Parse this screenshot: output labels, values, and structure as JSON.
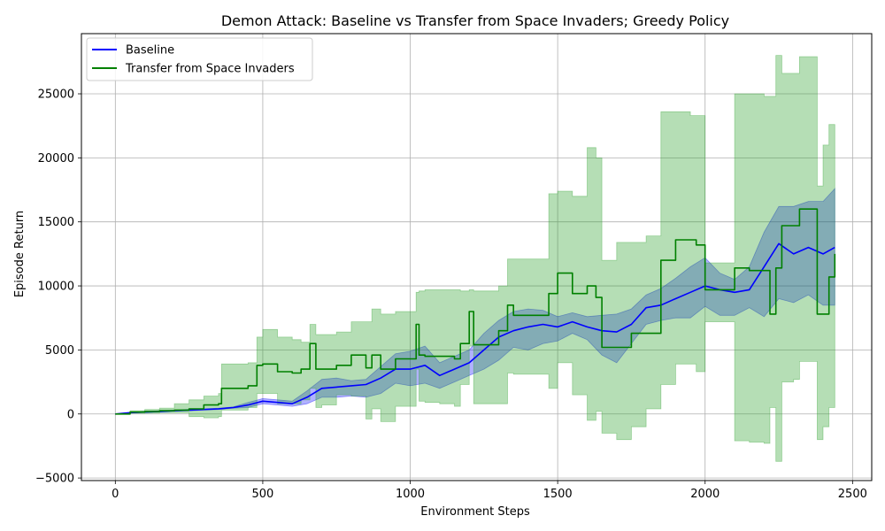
{
  "chart_data": {
    "type": "line",
    "title": "Demon Attack: Baseline vs Transfer from Space Invaders; Greedy Policy",
    "xlabel": "Environment Steps",
    "ylabel": "Episode Return",
    "xlim": [
      -115,
      2565
    ],
    "ylim": [
      -5200,
      29700
    ],
    "xticks": [
      0,
      500,
      1000,
      1500,
      2000,
      2500
    ],
    "yticks": [
      -5000,
      0,
      5000,
      10000,
      15000,
      20000,
      25000
    ],
    "grid": true,
    "legend_position": "top-left",
    "series": [
      {
        "name": "Baseline",
        "color": "#0000ff",
        "band_color": "#0000ff",
        "x": [
          0,
          50,
          100,
          150,
          200,
          250,
          300,
          350,
          400,
          450,
          500,
          550,
          600,
          650,
          700,
          750,
          800,
          850,
          900,
          950,
          1000,
          1050,
          1100,
          1150,
          1200,
          1250,
          1300,
          1350,
          1400,
          1450,
          1500,
          1550,
          1600,
          1650,
          1700,
          1750,
          1800,
          1850,
          1900,
          1950,
          2000,
          2050,
          2100,
          2150,
          2200,
          2250,
          2300,
          2350,
          2400,
          2440
        ],
        "y": [
          0,
          100,
          150,
          200,
          250,
          300,
          350,
          400,
          500,
          700,
          1000,
          900,
          800,
          1300,
          2000,
          2100,
          2200,
          2300,
          2800,
          3500,
          3500,
          3800,
          3000,
          3500,
          4000,
          5000,
          6000,
          6500,
          6800,
          7000,
          6800,
          7200,
          6800,
          6500,
          6400,
          7000,
          8300,
          8500,
          9000,
          9500,
          10000,
          9700,
          9500,
          9700,
          11500,
          13300,
          12500,
          13000,
          12500,
          13000
        ],
        "upper": [
          0,
          120,
          180,
          250,
          300,
          350,
          400,
          450,
          550,
          900,
          1200,
          1100,
          1000,
          1800,
          2700,
          2800,
          2600,
          2700,
          3700,
          4700,
          4900,
          5300,
          4000,
          4500,
          5000,
          6300,
          7300,
          8000,
          8200,
          8100,
          7600,
          7900,
          7600,
          7700,
          7800,
          8200,
          9300,
          9800,
          10600,
          11500,
          12200,
          11000,
          10500,
          11500,
          14200,
          16200,
          16200,
          16600,
          16600,
          17600
        ],
        "lower": [
          0,
          80,
          120,
          150,
          200,
          250,
          300,
          350,
          450,
          500,
          800,
          700,
          600,
          800,
          1300,
          1300,
          1400,
          1300,
          1600,
          2400,
          2200,
          2400,
          2000,
          2500,
          3000,
          3500,
          4200,
          5200,
          5000,
          5500,
          5700,
          6300,
          5800,
          4600,
          4000,
          5500,
          7000,
          7300,
          7500,
          7500,
          8400,
          7700,
          7700,
          8300,
          7600,
          9000,
          8700,
          9300,
          8500,
          8500
        ]
      },
      {
        "name": "Transfer from Space Invaders",
        "color": "#008000",
        "band_color": "#2ca02c",
        "x": [
          0,
          50,
          100,
          150,
          200,
          250,
          300,
          350,
          360,
          400,
          450,
          480,
          500,
          550,
          600,
          630,
          660,
          680,
          700,
          750,
          800,
          850,
          870,
          900,
          950,
          1000,
          1020,
          1030,
          1050,
          1100,
          1150,
          1170,
          1200,
          1215,
          1250,
          1300,
          1330,
          1350,
          1400,
          1450,
          1470,
          1500,
          1550,
          1600,
          1630,
          1650,
          1700,
          1750,
          1800,
          1850,
          1900,
          1950,
          1970,
          2000,
          2050,
          2095,
          2100,
          2150,
          2200,
          2220,
          2240,
          2260,
          2300,
          2320,
          2350,
          2380,
          2400,
          2420,
          2440
        ],
        "y": [
          0,
          150,
          200,
          250,
          300,
          400,
          700,
          800,
          2000,
          2000,
          2200,
          3800,
          3900,
          3300,
          3200,
          3500,
          5500,
          3500,
          3500,
          3800,
          4600,
          3600,
          4600,
          3500,
          4300,
          4300,
          7000,
          4600,
          4500,
          4500,
          4300,
          5500,
          8000,
          5400,
          5400,
          6500,
          8500,
          7700,
          7700,
          7700,
          9400,
          11000,
          9400,
          10000,
          9100,
          5200,
          5200,
          6300,
          6300,
          12000,
          13600,
          13600,
          13200,
          9700,
          9700,
          9700,
          11400,
          11200,
          11200,
          7800,
          11400,
          14700,
          14700,
          16000,
          16000,
          7800,
          7800,
          10700,
          12500
        ],
        "upper": [
          0,
          250,
          350,
          450,
          800,
          1100,
          1400,
          1600,
          3900,
          3900,
          4000,
          6000,
          6600,
          6000,
          5800,
          5600,
          7000,
          6200,
          6200,
          6400,
          7200,
          7200,
          8200,
          7800,
          8000,
          8000,
          9500,
          9600,
          9700,
          9700,
          9700,
          9600,
          9700,
          9600,
          9600,
          10000,
          12100,
          12100,
          12100,
          12100,
          17200,
          17400,
          17000,
          20800,
          20000,
          12000,
          13400,
          13400,
          13900,
          23600,
          23600,
          23300,
          23300,
          11800,
          11800,
          11800,
          25000,
          25000,
          24800,
          24800,
          28000,
          26600,
          26600,
          27900,
          27900,
          17800,
          21000,
          22600,
          22600
        ],
        "lower": [
          0,
          50,
          60,
          100,
          100,
          -200,
          -300,
          -200,
          300,
          300,
          500,
          1600,
          1600,
          800,
          800,
          1100,
          2000,
          500,
          700,
          1500,
          1400,
          -400,
          400,
          -600,
          600,
          600,
          3500,
          1000,
          900,
          800,
          600,
          2300,
          5300,
          800,
          800,
          800,
          3200,
          3100,
          3100,
          3100,
          2000,
          4000,
          1500,
          -500,
          200,
          -1500,
          -2000,
          -1000,
          400,
          2300,
          3900,
          3900,
          3300,
          7200,
          7200,
          7200,
          -2100,
          -2200,
          -2300,
          500,
          -3700,
          2500,
          2700,
          4100,
          4100,
          -2000,
          -1000,
          500,
          2000
        ]
      }
    ]
  }
}
